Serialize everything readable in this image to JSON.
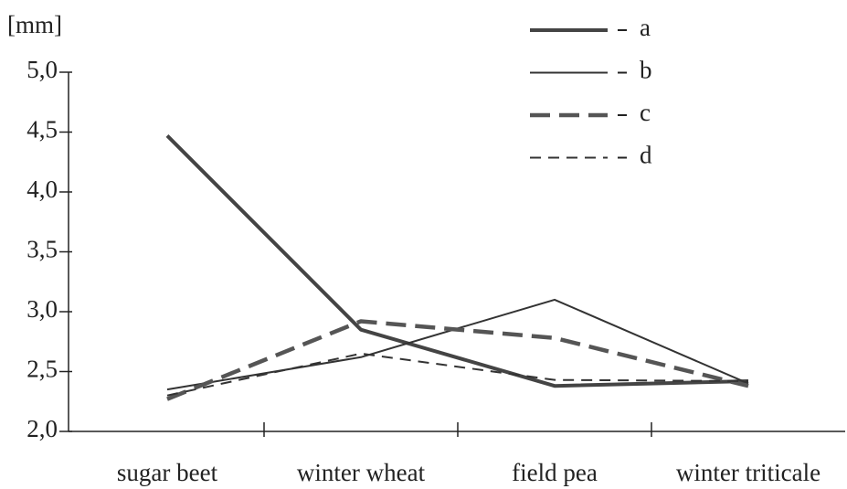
{
  "chart_data": {
    "type": "line",
    "y_label": "[mm]",
    "categories": [
      "sugar beet",
      "winter wheat",
      "field pea",
      "winter triticale"
    ],
    "series": [
      {
        "name": "a",
        "color": "#444444",
        "style": "thick-solid",
        "values": [
          4.47,
          2.85,
          2.38,
          2.42
        ]
      },
      {
        "name": "b",
        "color": "#333333",
        "style": "thin-solid",
        "values": [
          2.35,
          2.62,
          3.1,
          2.4
        ]
      },
      {
        "name": "c",
        "color": "#555555",
        "style": "thick-dashed",
        "values": [
          2.27,
          2.92,
          2.78,
          2.38
        ]
      },
      {
        "name": "d",
        "color": "#333333",
        "style": "thin-dashed",
        "values": [
          2.3,
          2.65,
          2.43,
          2.42
        ]
      }
    ],
    "ylim": [
      2,
      5
    ],
    "yticks": [
      {
        "value": 2,
        "label": "2,0"
      },
      {
        "value": 2.5,
        "label": "2,5"
      },
      {
        "value": 3,
        "label": "3,0"
      },
      {
        "value": 3.5,
        "label": "3,5"
      },
      {
        "value": 4,
        "label": "4,0"
      },
      {
        "value": 4.5,
        "label": "4,5"
      },
      {
        "value": 5,
        "label": "5,0"
      }
    ],
    "legend": "top-right"
  }
}
